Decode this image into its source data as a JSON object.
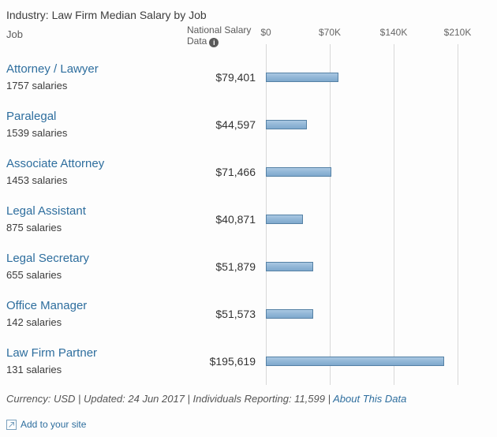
{
  "title": "Industry: Law Firm Median Salary by Job",
  "headers": {
    "job": "Job",
    "national_line1": "National Salary",
    "national_line2": "Data",
    "info_icon_glyph": "i"
  },
  "chart_data": {
    "type": "bar",
    "orientation": "horizontal",
    "title": "Industry: Law Firm Median Salary by Job",
    "categories": [
      "Attorney / Lawyer",
      "Paralegal",
      "Associate Attorney",
      "Legal Assistant",
      "Legal Secretary",
      "Office Manager",
      "Law Firm Partner"
    ],
    "values": [
      79401,
      44597,
      71466,
      40871,
      51879,
      51573,
      195619
    ],
    "value_labels": [
      "$79,401",
      "$44,597",
      "$71,466",
      "$40,871",
      "$51,879",
      "$51,573",
      "$195,619"
    ],
    "salary_counts": [
      "1757 salaries",
      "1539 salaries",
      "1453 salaries",
      "875 salaries",
      "655 salaries",
      "142 salaries",
      "131 salaries"
    ],
    "x_ticks": [
      0,
      70000,
      140000,
      210000
    ],
    "x_tick_labels": [
      "$0",
      "$70K",
      "$140K",
      "$210K"
    ],
    "xlim": [
      0,
      250000
    ],
    "ylabel": "Job",
    "xlabel": "National Salary Data",
    "grid": "vertical",
    "bar_color": "#7fa9cd",
    "bar_border_color": "#5581a5",
    "gridline_color": "#d8d8d8",
    "link_color": "#2e6e9e"
  },
  "footer": {
    "meta": "Currency: USD | Updated: 24 Jun 2017 | Individuals Reporting: 11,599 |",
    "about_link": "About This Data"
  },
  "add_to_site": "Add to your site"
}
